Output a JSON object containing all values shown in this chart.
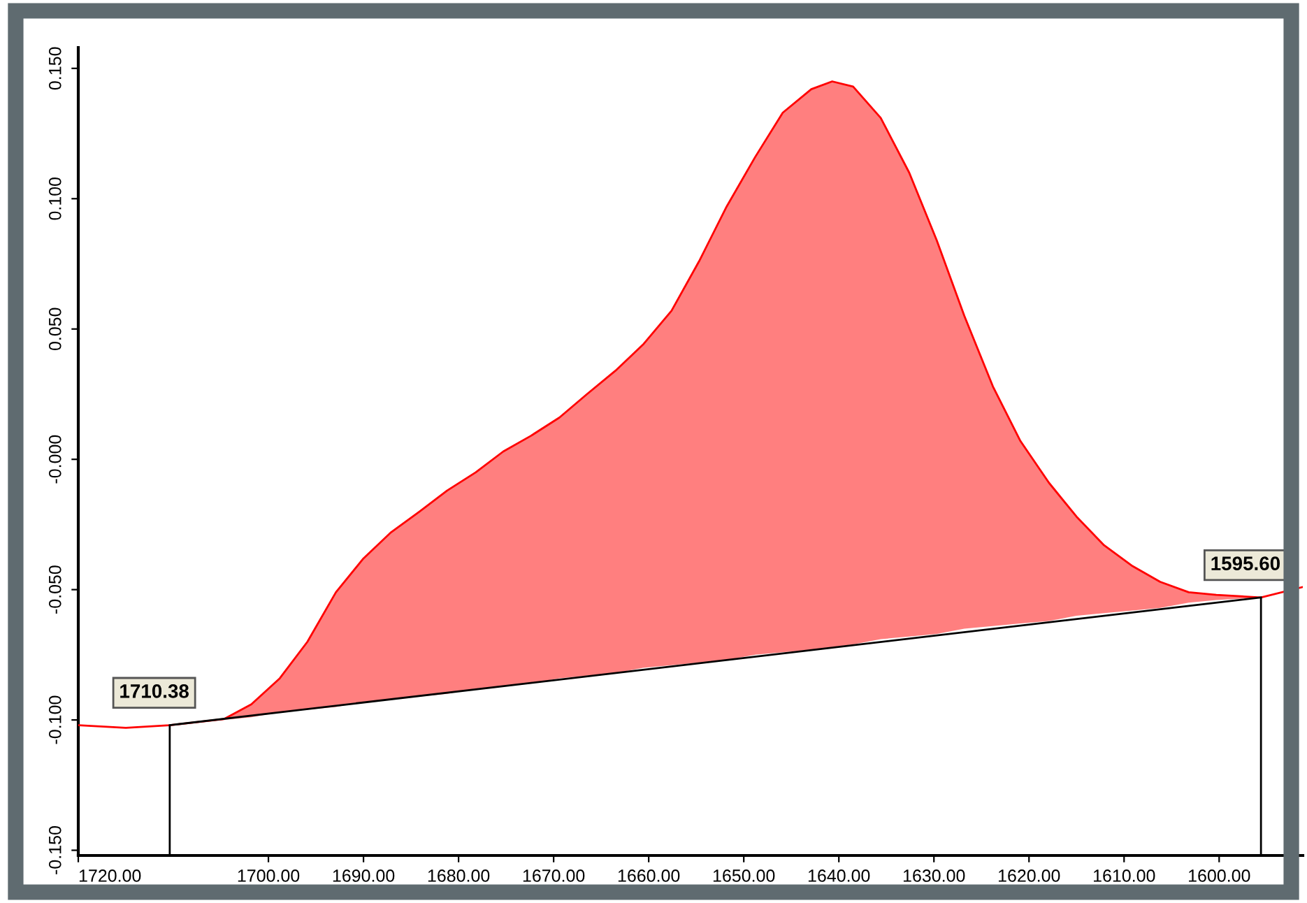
{
  "chart_data": {
    "type": "line",
    "series": [
      {
        "color": "#ff0000",
        "x": [
          1720,
          1715,
          1710.38,
          1704.7,
          1701.8,
          1698.8,
          1695.9,
          1692.9,
          1690,
          1687.1,
          1684.1,
          1681.2,
          1678.2,
          1675.3,
          1672.4,
          1669.4,
          1666.5,
          1663.5,
          1660.6,
          1657.6,
          1654.7,
          1651.8,
          1648.8,
          1645.9,
          1642.9,
          1640.7,
          1638.5,
          1635.6,
          1632.6,
          1629.7,
          1626.8,
          1623.8,
          1620.9,
          1617.9,
          1615,
          1612.1,
          1609.1,
          1606.2,
          1603.2,
          1600.3,
          1595.6,
          1591.2
        ],
        "values": [
          -0.102,
          -0.103,
          -0.102,
          -0.0997,
          -0.094,
          -0.084,
          -0.07,
          -0.051,
          -0.038,
          -0.028,
          -0.02,
          -0.012,
          -0.005,
          0.003,
          0.009,
          0.016,
          0.025,
          0.034,
          0.044,
          0.057,
          0.076,
          0.097,
          0.116,
          0.133,
          0.142,
          0.145,
          0.143,
          0.131,
          0.11,
          0.084,
          0.055,
          0.028,
          0.007,
          -0.009,
          -0.022,
          -0.033,
          -0.041,
          -0.047,
          -0.051,
          -0.052,
          -0.053,
          -0.049
        ],
        "upper": [
          null,
          null,
          -0.102,
          -0.0997,
          -0.094,
          -0.084,
          -0.07,
          -0.051,
          -0.038,
          -0.028,
          -0.02,
          -0.012,
          -0.005,
          0.003,
          0.009,
          0.016,
          0.025,
          0.034,
          0.044,
          0.057,
          0.076,
          0.097,
          0.116,
          0.133,
          0.142,
          0.145,
          0.143,
          0.131,
          0.11,
          0.084,
          0.055,
          0.028,
          0.007,
          -0.009,
          -0.022,
          -0.033,
          -0.041,
          -0.047,
          -0.051,
          -0.052,
          -0.053,
          null
        ],
        "lower": [
          null,
          null,
          -0.102,
          -0.1,
          -0.099,
          -0.097,
          -0.096,
          -0.095,
          -0.093,
          -0.092,
          -0.091,
          -0.09,
          -0.088,
          -0.087,
          -0.086,
          -0.084,
          -0.083,
          -0.082,
          -0.08,
          -0.079,
          -0.078,
          -0.077,
          -0.075,
          -0.074,
          -0.073,
          -0.072,
          -0.071,
          -0.069,
          -0.068,
          -0.067,
          -0.065,
          -0.064,
          -0.063,
          -0.062,
          -0.06,
          -0.059,
          -0.058,
          -0.057,
          -0.055,
          -0.054,
          -0.053,
          null
        ]
      },
      {
        "color": "#000000",
        "x": [
          1710.38,
          1595.6
        ],
        "values": [
          -0.102,
          -0.053
        ]
      }
    ],
    "xlim": [
      1720,
      1591.2
    ],
    "xticks": [
      {
        "value": 1720,
        "label": "1720.00"
      },
      {
        "value": 1700,
        "label": "1700.00"
      },
      {
        "value": 1690,
        "label": "1690.00"
      },
      {
        "value": 1680,
        "label": "1680.00"
      },
      {
        "value": 1670,
        "label": "1670.00"
      },
      {
        "value": 1660,
        "label": "1660.00"
      },
      {
        "value": 1650,
        "label": "1650.00"
      },
      {
        "value": 1640,
        "label": "1640.00"
      },
      {
        "value": 1630,
        "label": "1630.00"
      },
      {
        "value": 1620,
        "label": "1620.00"
      },
      {
        "value": 1610,
        "label": "1610.00"
      },
      {
        "value": 1600,
        "label": "1600.00"
      }
    ],
    "ylim": [
      -0.152,
      0.158
    ],
    "yticks": [
      {
        "value": -0.15,
        "label": "-0.150"
      },
      {
        "value": -0.1,
        "label": "-0.100"
      },
      {
        "value": -0.05,
        "label": "-0.050"
      },
      {
        "value": 0,
        "label": "-0.000"
      },
      {
        "value": 0.05,
        "label": "0.050"
      },
      {
        "value": 0.1,
        "label": "0.100"
      },
      {
        "value": 0.15,
        "label": "0.150"
      }
    ],
    "ref_lines": [
      {
        "axis": "x",
        "value": 1710.38,
        "label": "1710.38",
        "color": "#000000"
      },
      {
        "axis": "x",
        "value": 1595.6,
        "label": "1595.60",
        "color": "#000000"
      }
    ],
    "grid": false,
    "legend": false
  }
}
